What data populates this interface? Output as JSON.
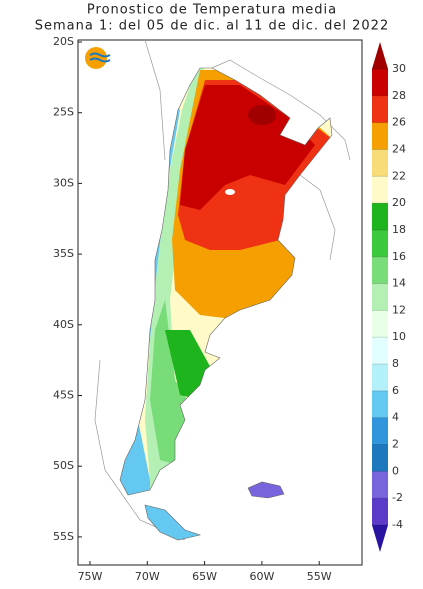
{
  "title": [
    "Pronostico de Temperatura media",
    "Semana 1: del 05 de dic. al 11 de dic. del 2022"
  ],
  "lat_labels": [
    "20S",
    "25S",
    "30S",
    "35S",
    "40S",
    "45S",
    "50S",
    "55S"
  ],
  "lon_labels": [
    "75W",
    "70W",
    "65W",
    "60W",
    "55W"
  ],
  "colorbar": {
    "levels": [
      30,
      28,
      26,
      24,
      22,
      20,
      18,
      16,
      14,
      12,
      10,
      8,
      6,
      4,
      2,
      0,
      -2,
      -4
    ],
    "colors": [
      "#a00000",
      "#c80000",
      "#f03214",
      "#f5a000",
      "#f8dc78",
      "#fffac8",
      "#1eb41e",
      "#3cc83c",
      "#78dc78",
      "#b4f0b4",
      "#e8ffe8",
      "#e1ffff",
      "#b4f0fa",
      "#64c8f0",
      "#3296dc",
      "#1e78be",
      "#7864dc",
      "#5a3cc8",
      "#2814a0"
    ]
  }
}
